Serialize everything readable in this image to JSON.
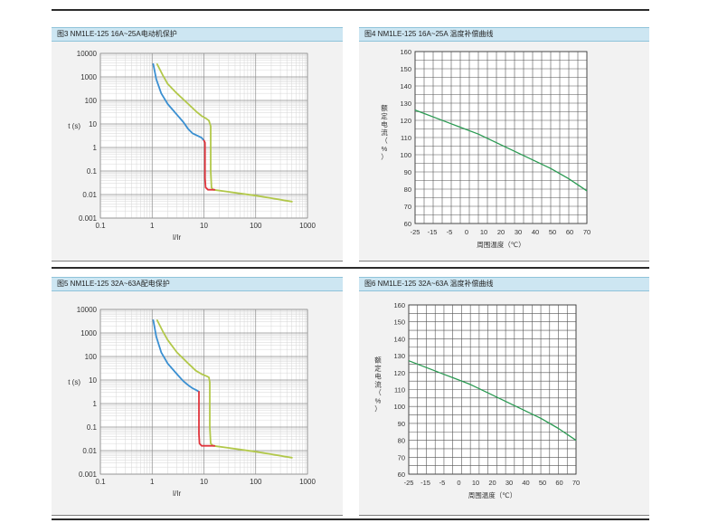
{
  "colors": {
    "blue": "#3a8fd1",
    "yellow_green": "#b2c84a",
    "red": "#e0343c",
    "green": "#2a9a52",
    "header_bg": "#cde6f2",
    "panel_bg": "#f2f2f2"
  },
  "chart_data": [
    {
      "id": "fig3",
      "type": "line",
      "scale": "log-log",
      "title": "图3 NM1LE-125 16A~25A电动机保护",
      "xlabel": "I/Ir",
      "ylabel": "t  (s)",
      "xlim": [
        0.1,
        1000
      ],
      "ylim": [
        0.001,
        10000
      ],
      "x_ticks": [
        "0.1",
        "1",
        "10",
        "100",
        "1000"
      ],
      "y_ticks": [
        "0.001",
        "0.01",
        "0.1",
        "1",
        "10",
        "100",
        "1000",
        "10000"
      ],
      "series": [
        {
          "name": "lower-limit",
          "color": "blue",
          "points": [
            [
              1.05,
              3500
            ],
            [
              1.2,
              800
            ],
            [
              1.5,
              200
            ],
            [
              2,
              70
            ],
            [
              3,
              25
            ],
            [
              4,
              12
            ],
            [
              5,
              6
            ],
            [
              6,
              4
            ],
            [
              7.5,
              3.2
            ],
            [
              9,
              2.6
            ],
            [
              10,
              2
            ]
          ]
        },
        {
          "name": "upper-limit",
          "color": "yellow_green",
          "points": [
            [
              1.25,
              3500
            ],
            [
              1.6,
              1200
            ],
            [
              2,
              500
            ],
            [
              3,
              200
            ],
            [
              5,
              70
            ],
            [
              7,
              35
            ],
            [
              9,
              22
            ],
            [
              11,
              17
            ],
            [
              12.5,
              14
            ],
            [
              13.5,
              8
            ],
            [
              13.5,
              0.1
            ],
            [
              14,
              0.02
            ],
            [
              15,
              0.016
            ],
            [
              30,
              0.013
            ],
            [
              100,
              0.009
            ],
            [
              200,
              0.007
            ],
            [
              500,
              0.005
            ]
          ]
        },
        {
          "name": "instantaneous",
          "color": "red",
          "points": [
            [
              10,
              2
            ],
            [
              10.5,
              1.6
            ],
            [
              10.5,
              0.05
            ],
            [
              10.8,
              0.02
            ],
            [
              12,
              0.016
            ],
            [
              14,
              0.016
            ],
            [
              16,
              0.016
            ]
          ]
        }
      ]
    },
    {
      "id": "fig4",
      "type": "line",
      "title": "图4 NM1LE-125 16A~25A 温度补偿曲线",
      "xlabel": "周围温度（℃）",
      "ylabel_chars": [
        "额",
        "定",
        "电",
        "流",
        "（",
        "%",
        "）"
      ],
      "xlim": [
        -25,
        70
      ],
      "ylim": [
        60,
        160
      ],
      "x_ticks": [
        "-25",
        "-15",
        "-5",
        "0",
        "10",
        "20",
        "30",
        "40",
        "50",
        "60",
        "70"
      ],
      "y_ticks": [
        "60",
        "70",
        "80",
        "90",
        "100",
        "110",
        "120",
        "130",
        "140",
        "150",
        "160"
      ],
      "series": [
        {
          "name": "rated-current",
          "color": "green",
          "points": [
            [
              -25,
              126
            ],
            [
              -15,
              122
            ],
            [
              -5,
              118
            ],
            [
              0,
              116
            ],
            [
              10,
              112
            ],
            [
              20,
              107
            ],
            [
              30,
              102
            ],
            [
              40,
              97
            ],
            [
              50,
              92
            ],
            [
              60,
              86
            ],
            [
              70,
              79
            ]
          ]
        }
      ]
    },
    {
      "id": "fig5",
      "type": "line",
      "scale": "log-log",
      "title": "图5 NM1LE-125 32A~63A配电保护",
      "xlabel": "I/Ir",
      "ylabel": "t  (s)",
      "xlim": [
        0.1,
        1000
      ],
      "ylim": [
        0.001,
        10000
      ],
      "x_ticks": [
        "0.1",
        "1",
        "10",
        "100",
        "1000"
      ],
      "y_ticks": [
        "0.001",
        "0.01",
        "0.1",
        "1",
        "10",
        "100",
        "1000",
        "10000"
      ],
      "series": [
        {
          "name": "lower-limit",
          "color": "blue",
          "points": [
            [
              1.05,
              3500
            ],
            [
              1.2,
              700
            ],
            [
              1.5,
              150
            ],
            [
              2,
              50
            ],
            [
              3,
              18
            ],
            [
              4,
              9
            ],
            [
              5,
              6
            ],
            [
              6,
              4.5
            ],
            [
              7,
              3.8
            ],
            [
              8,
              3.2
            ]
          ]
        },
        {
          "name": "upper-limit",
          "color": "yellow_green",
          "points": [
            [
              1.25,
              3500
            ],
            [
              1.6,
              1200
            ],
            [
              2,
              500
            ],
            [
              3,
              150
            ],
            [
              5,
              50
            ],
            [
              7,
              25
            ],
            [
              9,
              18
            ],
            [
              11,
              15
            ],
            [
              12.5,
              13
            ],
            [
              13,
              8
            ],
            [
              13,
              0.1
            ],
            [
              13.5,
              0.02
            ],
            [
              15,
              0.016
            ],
            [
              30,
              0.013
            ],
            [
              100,
              0.009
            ],
            [
              200,
              0.007
            ],
            [
              500,
              0.005
            ]
          ]
        },
        {
          "name": "instantaneous",
          "color": "red",
          "points": [
            [
              8,
              3.2
            ],
            [
              8,
              0.05
            ],
            [
              8.2,
              0.02
            ],
            [
              9,
              0.016
            ],
            [
              12,
              0.016
            ],
            [
              16,
              0.016
            ]
          ]
        }
      ]
    },
    {
      "id": "fig6",
      "type": "line",
      "title": "图6 NM1LE-125 32A~63A 温度补偿曲线",
      "xlabel": "周围温度（℃）",
      "ylabel_chars": [
        "额",
        "定",
        "电",
        "流",
        "（",
        "%",
        "）"
      ],
      "xlim": [
        -25,
        70
      ],
      "ylim": [
        60,
        160
      ],
      "x_ticks": [
        "-25",
        "-15",
        "-5",
        "0",
        "10",
        "20",
        "30",
        "40",
        "50",
        "60",
        "70"
      ],
      "y_ticks": [
        "60",
        "70",
        "80",
        "90",
        "100",
        "110",
        "120",
        "130",
        "140",
        "150",
        "160"
      ],
      "series": [
        {
          "name": "rated-current",
          "color": "green",
          "points": [
            [
              -25,
              127
            ],
            [
              -15,
              123
            ],
            [
              -5,
              119
            ],
            [
              0,
              117
            ],
            [
              10,
              113
            ],
            [
              20,
              108
            ],
            [
              30,
              103
            ],
            [
              40,
              98
            ],
            [
              50,
              93
            ],
            [
              60,
              87
            ],
            [
              70,
              80
            ]
          ]
        }
      ]
    }
  ]
}
